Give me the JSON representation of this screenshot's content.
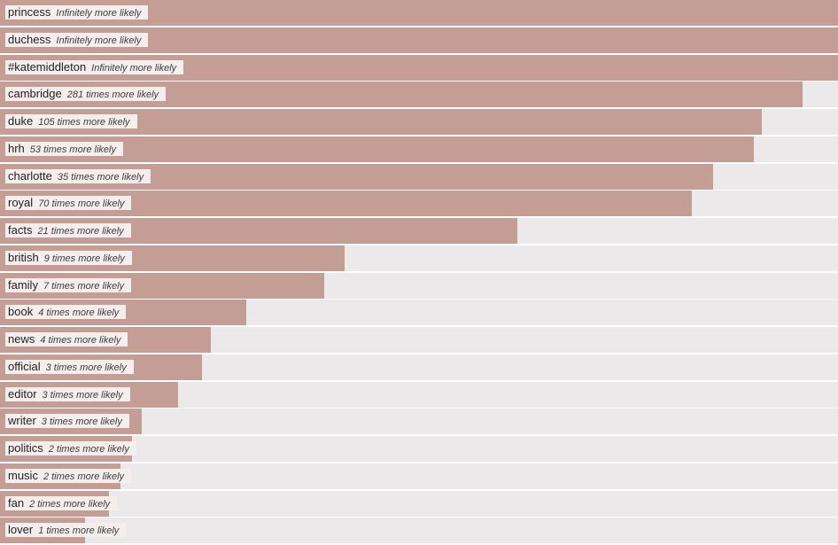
{
  "colors": {
    "bar": "#c49d95",
    "track": "#ebe9e9",
    "label_bg": "#f4eeed"
  },
  "chart_data": {
    "type": "bar",
    "orientation": "horizontal",
    "xlim": [
      0,
      1
    ],
    "categories": [
      "princess",
      "duchess",
      "#katemiddleton",
      "cambridge",
      "duke",
      "hrh",
      "charlotte",
      "royal",
      "facts",
      "british",
      "family",
      "book",
      "news",
      "official",
      "editor",
      "writer",
      "politics",
      "music",
      "fan",
      "lover"
    ],
    "values": [
      1.0,
      1.0,
      1.0,
      0.958,
      0.909,
      0.9,
      0.851,
      0.826,
      0.617,
      0.411,
      0.387,
      0.294,
      0.252,
      0.241,
      0.213,
      0.169,
      0.157,
      0.144,
      0.13,
      0.101
    ],
    "annotations": [
      "Infinitely more likely",
      "Infinitely more likely",
      "Infinitely more likely",
      "281 times more likely",
      "105 times more likely",
      "53 times more likely",
      "35 times more likely",
      "70 times more likely",
      "21 times more likely",
      "9 times more likely",
      "7 times more likely",
      "4 times more likely",
      "4 times more likely",
      "3 times more likely",
      "3 times more likely",
      "3 times more likely",
      "2 times more likely",
      "2 times more likely",
      "2 times more likely",
      "1 times more likely"
    ]
  }
}
